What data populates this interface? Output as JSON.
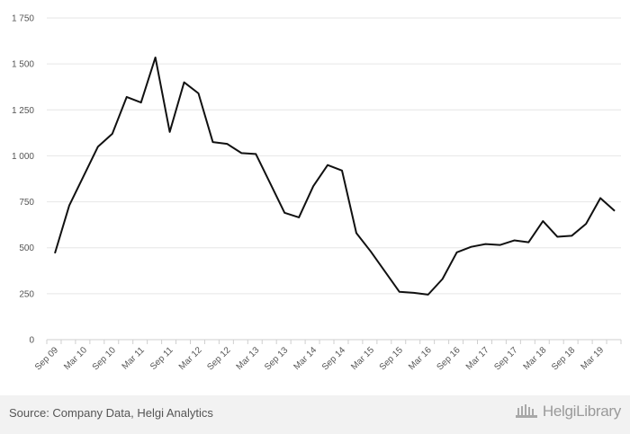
{
  "chart_data": {
    "type": "line",
    "title": "",
    "xlabel": "",
    "ylabel": "",
    "ylim": [
      0,
      1750
    ],
    "yticks": [
      0,
      250,
      500,
      750,
      1000,
      1250,
      1500,
      1750
    ],
    "ytick_labels": [
      "0",
      "250",
      "500",
      "750",
      "1 000",
      "1 250",
      "1 500",
      "1 750"
    ],
    "grid": true,
    "legend": "none",
    "line_color": "#111111",
    "x": [
      "Sep 09",
      "Dec 09",
      "Mar 10",
      "Jun 10",
      "Sep 10",
      "Dec 10",
      "Mar 11",
      "Jun 11",
      "Sep 11",
      "Dec 11",
      "Mar 12",
      "Jun 12",
      "Sep 12",
      "Dec 12",
      "Mar 13",
      "Jun 13",
      "Sep 13",
      "Dec 13",
      "Mar 14",
      "Jun 14",
      "Sep 14",
      "Dec 14",
      "Mar 15",
      "Jun 15",
      "Sep 15",
      "Dec 15",
      "Mar 16",
      "Jun 16",
      "Sep 16",
      "Dec 16",
      "Mar 17",
      "Jun 17",
      "Sep 17",
      "Dec 17",
      "Mar 18",
      "Jun 18",
      "Sep 18",
      "Dec 18",
      "Mar 19",
      "Jun 19"
    ],
    "xtick_labels": [
      "Sep 09",
      "Mar 10",
      "Sep 10",
      "Mar 11",
      "Sep 11",
      "Mar 12",
      "Sep 12",
      "Mar 13",
      "Sep 13",
      "Mar 14",
      "Sep 14",
      "Mar 15",
      "Sep 15",
      "Mar 16",
      "Sep 16",
      "Mar 17",
      "Sep 17",
      "Mar 18",
      "Sep 18",
      "Mar 19"
    ],
    "series": [
      {
        "values": [
          470,
          730,
          890,
          1050,
          1120,
          1320,
          1290,
          1535,
          1130,
          1400,
          1340,
          1075,
          1065,
          1015,
          1010,
          850,
          690,
          665,
          835,
          950,
          920,
          580,
          480,
          370,
          260,
          255,
          245,
          330,
          475,
          505,
          520,
          515,
          540,
          530,
          645,
          560,
          565,
          630,
          770,
          700
        ]
      }
    ]
  },
  "footer": {
    "source": "Source: Company Data, Helgi Analytics",
    "logo_text": "HelgiLibrary"
  }
}
